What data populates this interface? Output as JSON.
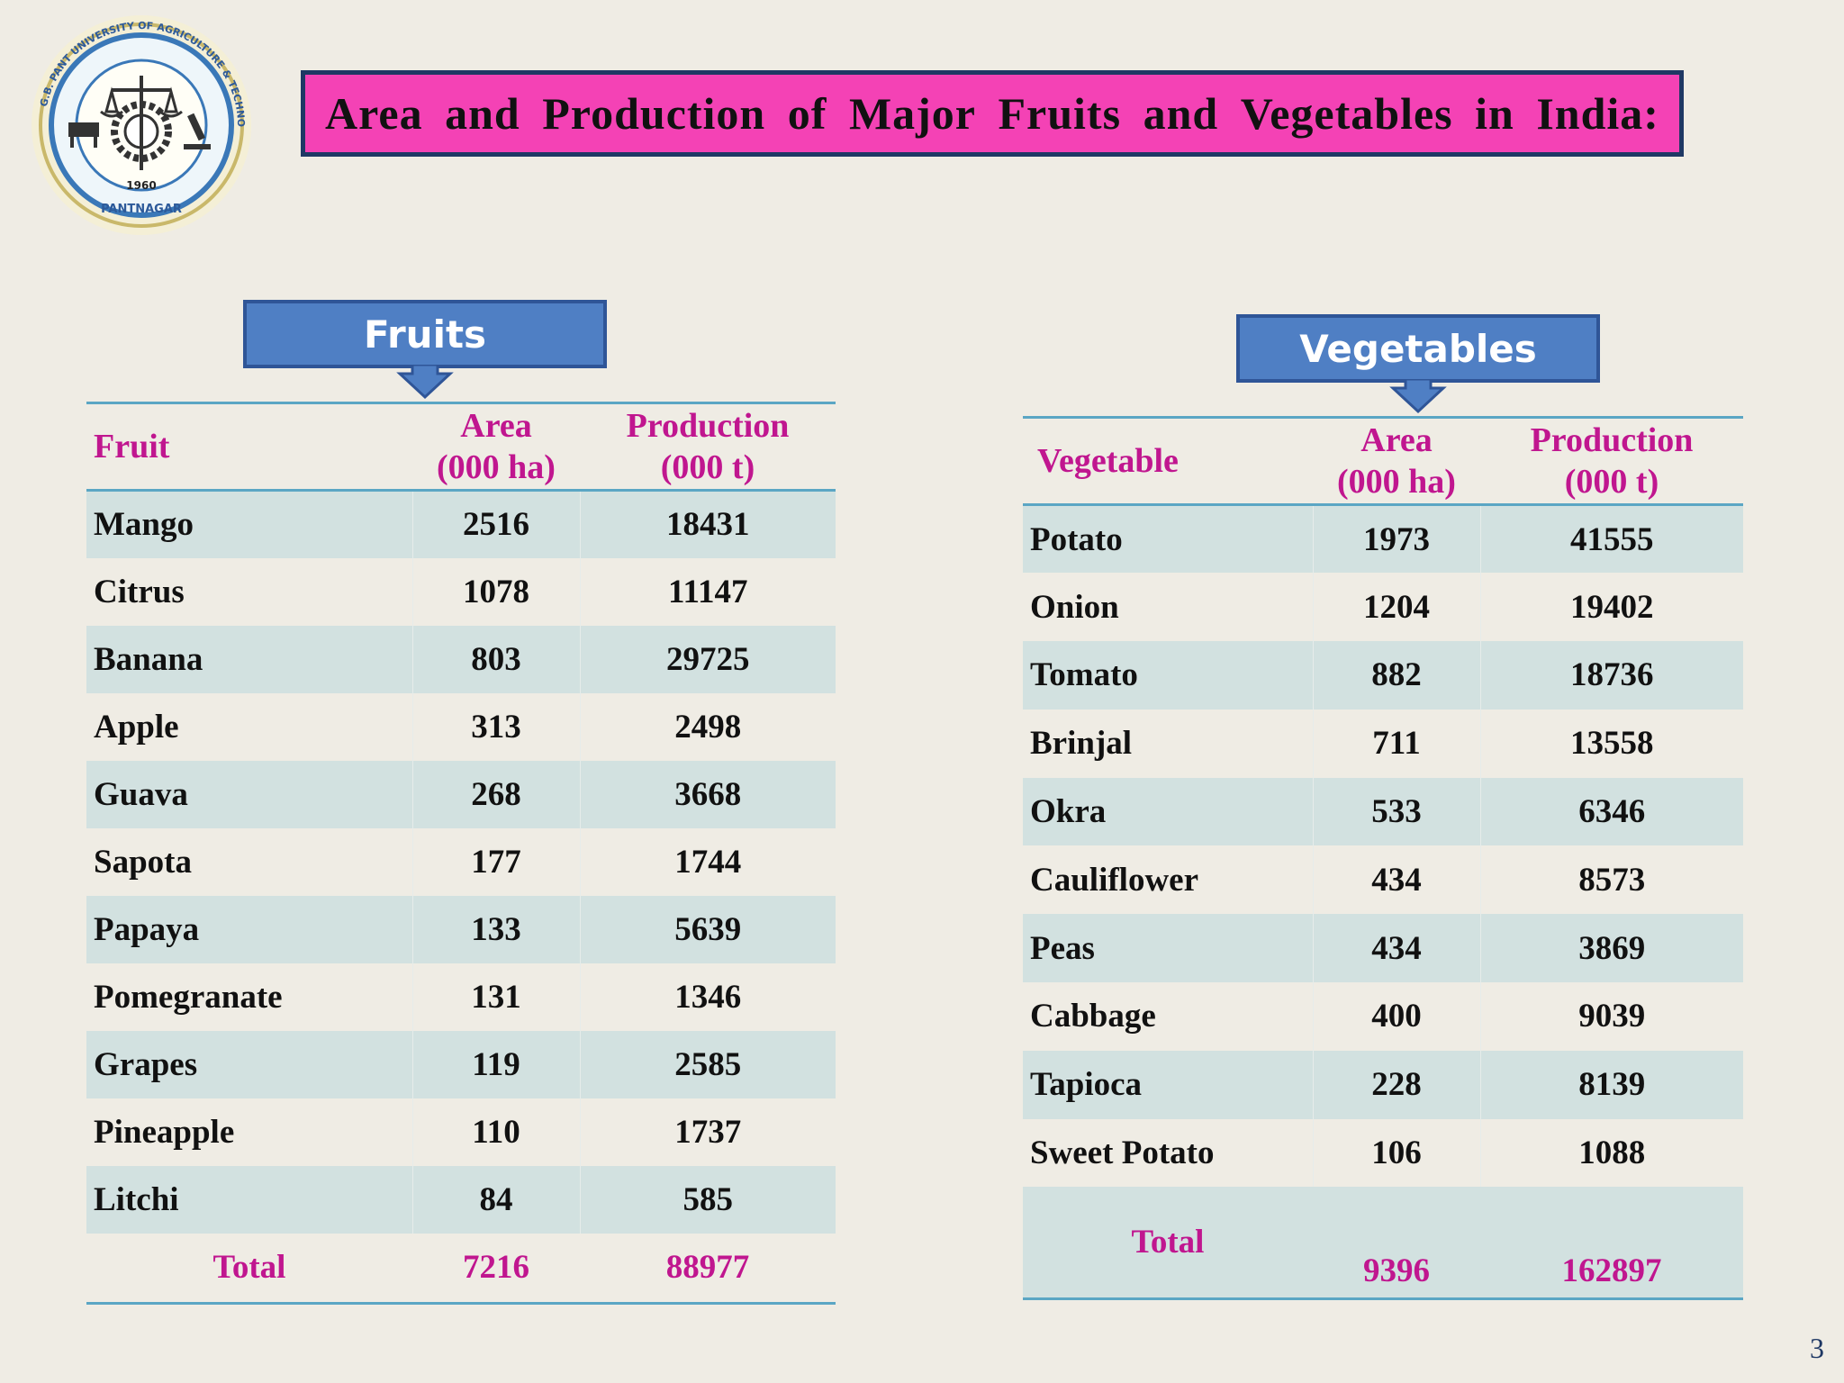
{
  "title": {
    "words": [
      "Area",
      "and",
      "Production",
      "of",
      "Major",
      "Fruits",
      "and",
      "Vegetables",
      "in",
      "India:"
    ]
  },
  "logo": {
    "text": "G.B. PANT UNIVERSITY OF AGRICULTURE & TECHNOLOGY",
    "year": "1960",
    "place": "PANTNAGAR"
  },
  "fruits": {
    "callout": "Fruits",
    "headers": {
      "name": "Fruit",
      "area_1": "Area",
      "area_2": "(000 ha)",
      "prod_1": "Production",
      "prod_2": "(000 t)"
    },
    "rows": [
      {
        "name": "Mango",
        "area": "2516",
        "production": "18431"
      },
      {
        "name": "Citrus",
        "area": "1078",
        "production": "11147"
      },
      {
        "name": "Banana",
        "area": "803",
        "production": "29725"
      },
      {
        "name": "Apple",
        "area": "313",
        "production": "2498"
      },
      {
        "name": "Guava",
        "area": "268",
        "production": "3668"
      },
      {
        "name": "Sapota",
        "area": "177",
        "production": "1744"
      },
      {
        "name": "Papaya",
        "area": "133",
        "production": "5639"
      },
      {
        "name": "Pomegranate",
        "area": "131",
        "production": "1346"
      },
      {
        "name": "Grapes",
        "area": "119",
        "production": "2585"
      },
      {
        "name": "Pineapple",
        "area": "110",
        "production": "1737"
      },
      {
        "name": "Litchi",
        "area": "84",
        "production": "585"
      }
    ],
    "total": {
      "label": "Total",
      "area": "7216",
      "production": "88977"
    }
  },
  "vegetables": {
    "callout": "Vegetables",
    "headers": {
      "name": "Vegetable",
      "area_1": "Area",
      "area_2": "(000 ha)",
      "prod_1": "Production",
      "prod_2": "(000 t)"
    },
    "rows": [
      {
        "name": "Potato",
        "area": "1973",
        "production": "41555"
      },
      {
        "name": "Onion",
        "area": "1204",
        "production": "19402"
      },
      {
        "name": "Tomato",
        "area": "882",
        "production": "18736"
      },
      {
        "name": "Brinjal",
        "area": "711",
        "production": "13558"
      },
      {
        "name": "Okra",
        "area": "533",
        "production": "6346"
      },
      {
        "name": "Cauliflower",
        "area": "434",
        "production": "8573"
      },
      {
        "name": "Peas",
        "area": "434",
        "production": "3869"
      },
      {
        "name": "Cabbage",
        "area": "400",
        "production": "9039"
      },
      {
        "name": "Tapioca",
        "area": "228",
        "production": "8139"
      },
      {
        "name": "Sweet Potato",
        "area": "106",
        "production": "1088"
      }
    ],
    "total": {
      "label": "Total",
      "area": "9396",
      "production": "162897"
    }
  },
  "page_number": "3",
  "colors": {
    "background": "#efece4",
    "title_fill": "#f442b5",
    "title_border": "#1f3864",
    "callout_fill": "#4f7fc4",
    "header_text": "#c0168f",
    "row_band": "#d2e1e0",
    "rule": "#5ba6c4"
  }
}
